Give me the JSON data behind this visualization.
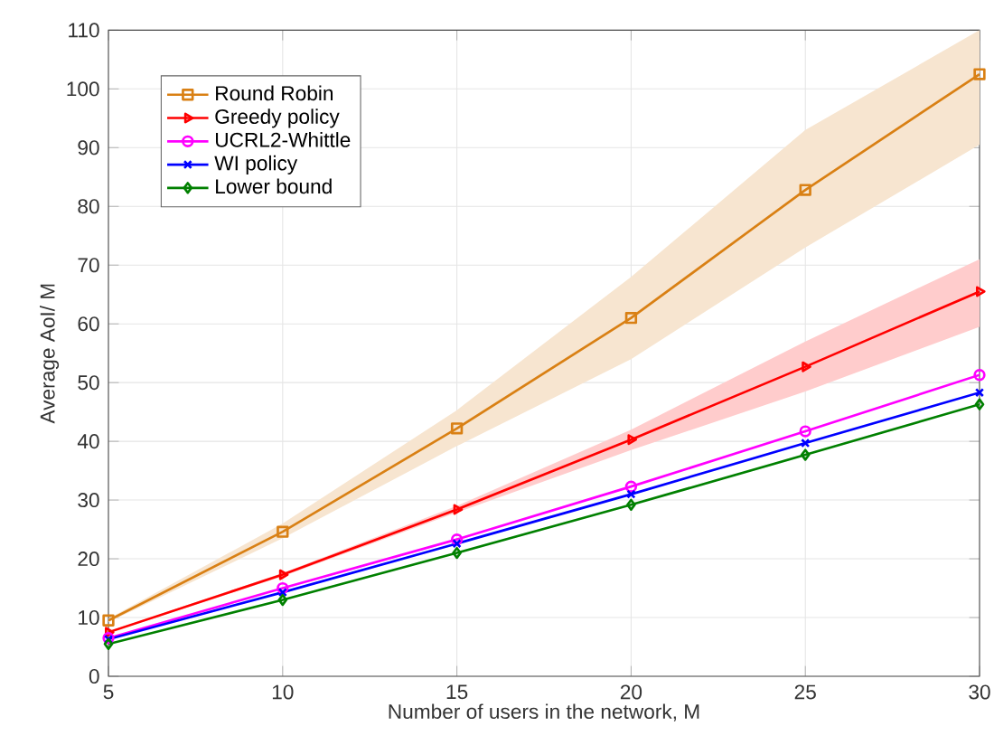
{
  "chart_data": {
    "type": "line",
    "xlabel": "Number of users in the network, M",
    "ylabel": "Average AoI/ M",
    "x": [
      5,
      10,
      15,
      20,
      25,
      30
    ],
    "xlim": [
      5,
      30
    ],
    "xticks": [
      5,
      10,
      15,
      20,
      25,
      30
    ],
    "ylim": [
      0,
      110
    ],
    "yticks": [
      0,
      10,
      20,
      30,
      40,
      50,
      60,
      70,
      80,
      90,
      100,
      110
    ],
    "grid": true,
    "legend": "top left",
    "line_style": "solid",
    "series": [
      {
        "name": "Round Robin",
        "color": "#d98014",
        "marker": "square",
        "values": [
          9.5,
          24.6,
          42.2,
          61,
          82.8,
          102.5
        ],
        "lower": [
          9.2,
          23.5,
          39.2,
          54,
          73,
          90.5
        ],
        "upper": [
          9.8,
          26,
          45.3,
          68,
          93,
          110
        ]
      },
      {
        "name": "Greedy policy",
        "color": "#ff0000",
        "marker": "triangle",
        "values": [
          7.5,
          17.3,
          28.4,
          40.3,
          52.7,
          65.5
        ],
        "lower": [
          7.4,
          17,
          27.9,
          38.5,
          48.5,
          59.5
        ],
        "upper": [
          7.6,
          17.6,
          29,
          42,
          57,
          71
        ]
      },
      {
        "name": "UCRL2-Whittle",
        "color": "#ff00ff",
        "marker": "circle",
        "values": [
          6.5,
          15,
          23.3,
          32.3,
          41.7,
          51.3
        ]
      },
      {
        "name": "WI policy",
        "color": "#0000ff",
        "marker": "cross",
        "values": [
          6.3,
          14.3,
          22.6,
          31,
          39.7,
          48.3
        ]
      },
      {
        "name": "Lower bound",
        "color": "#008000",
        "marker": "diamond",
        "values": [
          5.5,
          13,
          21,
          29.2,
          37.7,
          46.3
        ]
      }
    ]
  }
}
